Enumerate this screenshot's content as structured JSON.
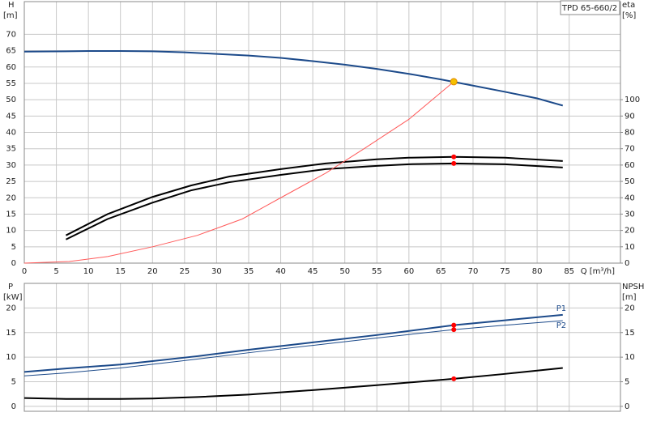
{
  "chart_data": [
    {
      "type": "line",
      "title": "TPD 65-660/2",
      "x_label": "Q [m³/h]",
      "y_label": "H",
      "y_unit": "[m]",
      "y2_label": "eta",
      "y2_unit": "[%]",
      "xlim": [
        0,
        93
      ],
      "xticks": [
        0,
        5,
        10,
        15,
        20,
        25,
        30,
        35,
        40,
        45,
        50,
        55,
        60,
        65,
        70,
        75,
        80,
        85
      ],
      "ylim": [
        0,
        80
      ],
      "yticks": [
        0,
        5,
        10,
        15,
        20,
        25,
        30,
        35,
        40,
        45,
        50,
        55,
        60,
        65,
        70
      ],
      "y2lim": [
        0,
        160
      ],
      "y2ticks": [
        0,
        10,
        20,
        30,
        40,
        50,
        60,
        70,
        80,
        90,
        100
      ],
      "grid": true,
      "series": [
        {
          "color": "#1c4a8a",
          "width": 2,
          "x": [
            0,
            6.5,
            10,
            15,
            20,
            25,
            30,
            35,
            40,
            45,
            50,
            55,
            60,
            65,
            70,
            75,
            80,
            84
          ],
          "values": [
            64.7,
            64.8,
            64.9,
            64.9,
            64.8,
            64.5,
            64.0,
            63.5,
            62.8,
            61.8,
            60.7,
            59.4,
            57.9,
            56.2,
            54.3,
            52.4,
            50.4,
            48.2
          ]
        },
        {
          "color": "#000000",
          "width": 2,
          "axis": "y2",
          "x": [
            6.5,
            13,
            20,
            26,
            32,
            40,
            47,
            55,
            60,
            67,
            75,
            84
          ],
          "values": [
            17,
            30,
            40.5,
            47.5,
            53,
            57.5,
            61,
            63.5,
            64.5,
            65,
            64.5,
            62.5
          ]
        },
        {
          "color": "#000000",
          "width": 2,
          "axis": "y2",
          "x": [
            6.5,
            13,
            20,
            26,
            32,
            40,
            47,
            55,
            60,
            67,
            75,
            84
          ],
          "values": [
            14.5,
            27,
            37,
            44.5,
            49.5,
            54,
            57.5,
            59.5,
            60.5,
            61,
            60.5,
            58.5
          ]
        },
        {
          "color": "#ff5a5a",
          "width": 1,
          "x": [
            0,
            7,
            13,
            20,
            27,
            34,
            40,
            47,
            53,
            60,
            67
          ],
          "values": [
            0,
            0.5,
            2,
            5,
            8.5,
            13.5,
            20,
            27.5,
            35,
            44,
            55.5
          ]
        }
      ],
      "markers": [
        {
          "x": 67,
          "y": 55.5,
          "color": "#f5c000"
        },
        {
          "x": 67,
          "y": 65,
          "axis": "y2",
          "color": "#ff0000"
        },
        {
          "x": 67,
          "y": 61,
          "axis": "y2",
          "color": "#ff0000"
        }
      ]
    },
    {
      "type": "line",
      "y_label": "P",
      "y_unit": "[kW]",
      "y2_label": "NPSH",
      "y2_unit": "[m]",
      "xlim": [
        0,
        93
      ],
      "xticks": [
        0,
        5,
        10,
        15,
        20,
        25,
        30,
        35,
        40,
        45,
        50,
        55,
        60,
        65,
        70,
        75,
        80,
        85
      ],
      "ylim": [
        -1,
        25
      ],
      "yticks": [
        0,
        5,
        10,
        15,
        20
      ],
      "y2lim": [
        -1,
        25
      ],
      "y2ticks": [
        0,
        5,
        10,
        15,
        20
      ],
      "grid": true,
      "series": [
        {
          "name": "P1",
          "color": "#1c4a8a",
          "width": 2,
          "x": [
            0,
            6.5,
            15,
            20,
            27,
            35,
            45,
            55,
            67,
            75,
            84
          ],
          "values": [
            7.0,
            7.7,
            8.5,
            9.2,
            10.2,
            11.5,
            13.0,
            14.5,
            16.5,
            17.5,
            18.6
          ]
        },
        {
          "name": "P2",
          "color": "#1c4a8a",
          "width": 1,
          "x": [
            0,
            6.5,
            15,
            25,
            35,
            45,
            55,
            67,
            75,
            84
          ],
          "values": [
            6.2,
            6.8,
            7.8,
            9.3,
            10.9,
            12.4,
            13.9,
            15.6,
            16.5,
            17.4
          ]
        },
        {
          "color": "#000000",
          "width": 2,
          "axis": "y2",
          "x": [
            0,
            6.5,
            15,
            20,
            27,
            35,
            45,
            55,
            67,
            75,
            84
          ],
          "values": [
            1.7,
            1.5,
            1.5,
            1.6,
            1.9,
            2.4,
            3.3,
            4.3,
            5.6,
            6.6,
            7.8
          ]
        }
      ],
      "markers": [
        {
          "x": 67,
          "y": 16.5,
          "color": "#ff0000"
        },
        {
          "x": 67,
          "y": 15.6,
          "color": "#ff0000"
        },
        {
          "x": 67,
          "y": 5.6,
          "axis": "y2",
          "color": "#ff0000"
        }
      ]
    }
  ]
}
